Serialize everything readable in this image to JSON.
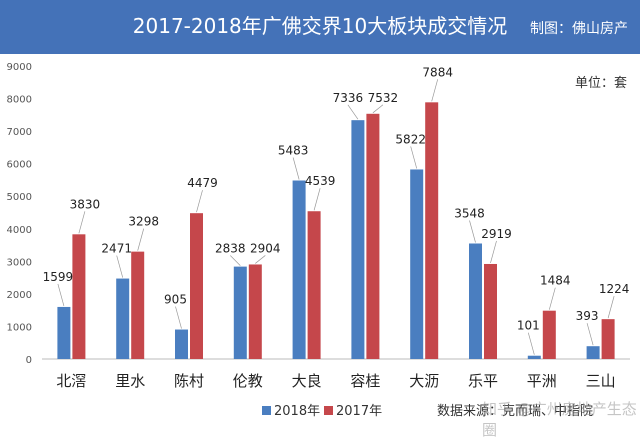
{
  "header": {
    "title": "2017-2018年广佛交界10大板块成交情况",
    "credit": "制图：佛山房产"
  },
  "footnote": "数据来源：克而瑞、中指院",
  "watermark": "知乎 @广州房地产生态圈",
  "colors": {
    "banner": "#4472b8",
    "series_2018": "#4a7ec0",
    "series_2017": "#c5474b"
  },
  "chart_data": {
    "type": "bar",
    "unit": "单位：套",
    "categories": [
      "北滘",
      "里水",
      "陈村",
      "伦教",
      "大良",
      "容桂",
      "大沥",
      "乐平",
      "平洲",
      "三山"
    ],
    "series": [
      {
        "name": "2018年",
        "values": [
          1599,
          2471,
          905,
          2838,
          5483,
          7336,
          5822,
          3548,
          101,
          393
        ]
      },
      {
        "name": "2017年",
        "values": [
          3830,
          3298,
          4479,
          2904,
          4539,
          7532,
          7884,
          2919,
          1484,
          1224
        ]
      }
    ],
    "yticks": [
      "0",
      "1000",
      "2000",
      "3000",
      "4000",
      "5000",
      "6000",
      "7000",
      "8000",
      "9000"
    ],
    "ylim": [
      0,
      9000
    ],
    "grid": false,
    "legend_position": "bottom"
  }
}
